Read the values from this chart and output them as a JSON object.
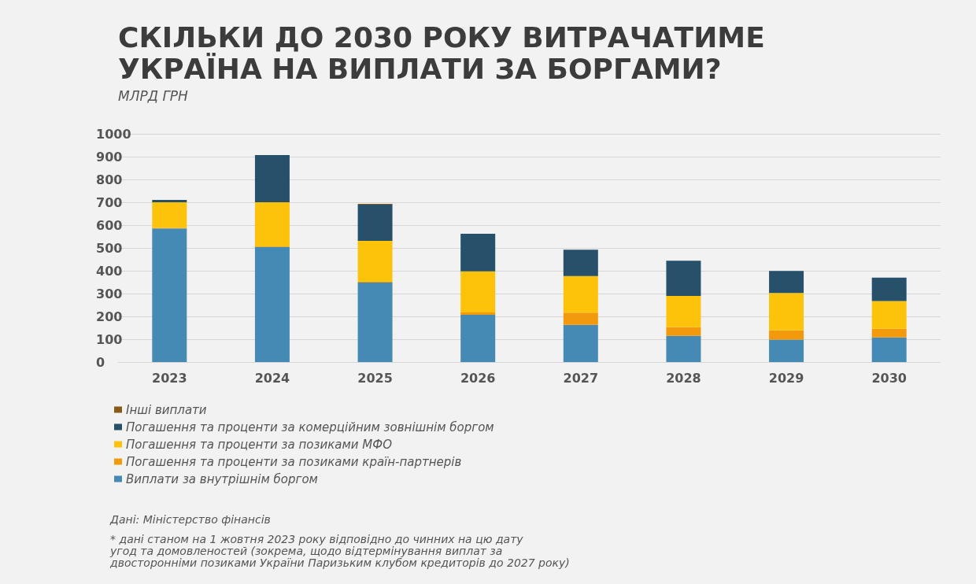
{
  "chart_data": {
    "type": "bar",
    "title": "СКІЛЬКИ ДО 2030 РОКУ ВИТРАЧАТИМЕ\nУКРАЇНА НА ВИПЛАТИ ЗА БОРГАМИ?",
    "subtitle": "МЛРД ГРН",
    "categories": [
      "2023",
      "2024",
      "2025",
      "2026",
      "2027",
      "2028",
      "2029",
      "2030"
    ],
    "stacked": true,
    "series": [
      {
        "name": "Виплати за внутрішнім боргом",
        "color": "#4589b5",
        "values": [
          585,
          504,
          348,
          207,
          163,
          115,
          98,
          108
        ]
      },
      {
        "name": "Погашення та проценти за позиками країн-партнерів",
        "color": "#f39a0c",
        "values": [
          3,
          3,
          4,
          10,
          53,
          38,
          41,
          38
        ]
      },
      {
        "name": "Погашення та проценти за позиками МФО",
        "color": "#fcc30a",
        "values": [
          112,
          193,
          179,
          180,
          161,
          137,
          164,
          121
        ]
      },
      {
        "name": "Погашення та проценти за комерційним зовнішнім боргом",
        "color": "#27516b",
        "values": [
          10,
          207,
          159,
          165,
          115,
          154,
          96,
          103
        ]
      },
      {
        "name": "Інші виплати",
        "color": "#8b5a1a",
        "values": [
          0,
          0,
          3,
          0,
          0,
          0,
          0,
          0
        ]
      }
    ],
    "ylim": [
      0,
      1000
    ],
    "yticks": [
      0,
      100,
      200,
      300,
      400,
      500,
      600,
      700,
      800,
      900,
      1000
    ],
    "grid": "y",
    "legend": "bottom left",
    "annotations": [
      "Дані: Міністерство фінансів",
      "* дані станом на 1 жовтня 2023 року відповідно до чинних на цю дату\nугод та домовленостей (зокрема, щодо відтермінування виплат за\nдвосторонніми позиками України Паризьким клубом кредиторів до 2027 року)"
    ]
  }
}
